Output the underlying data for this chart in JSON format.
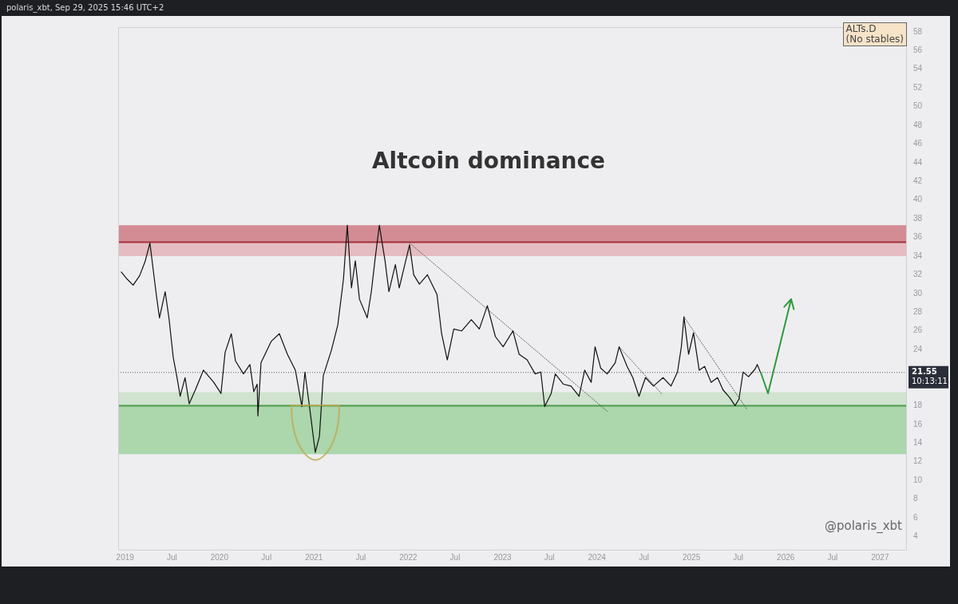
{
  "chart_data": {
    "type": "line",
    "title": "Altcoin dominance",
    "annotations": [
      "polaris_xbt, Sep 29, 2025 15:46 UTC+2",
      "ALTs.D\n(No stables)",
      "@polaris_xbt",
      "10:13:11"
    ],
    "xlim": [
      "2018-12-05",
      "2027-04-15"
    ],
    "xticks": [
      "2019",
      {
        "value": "2019-07",
        "label": "Jul"
      },
      "2020",
      {
        "value": "2020-07",
        "label": "Jul"
      },
      "2021",
      {
        "value": "2021-07",
        "label": "Jul"
      },
      "2022",
      {
        "value": "2022-07",
        "label": "Jul"
      },
      "2023",
      {
        "value": "2023-07",
        "label": "Jul"
      },
      "2024",
      {
        "value": "2024-07",
        "label": "Jul"
      },
      "2025",
      {
        "value": "2025-07",
        "label": "Jul"
      },
      "2026",
      {
        "value": "2026-07",
        "label": "Jul"
      },
      "2027"
    ],
    "ylim": [
      2.5,
      58.5
    ],
    "yticks": [
      4,
      6,
      8,
      10,
      12,
      14,
      16,
      18,
      24,
      26,
      28,
      30,
      32,
      34,
      36,
      38,
      40,
      42,
      44,
      46,
      48,
      50,
      52,
      54,
      56,
      58
    ],
    "grid": false,
    "legend": false,
    "marker": "none",
    "ref_lines": [
      {
        "axis": "y",
        "value": 21.55,
        "label": "21.55",
        "color": "#555555",
        "line_style": "dotted"
      },
      {
        "axis": "y",
        "value": 35.5,
        "color": "#a0303a",
        "line_style": "solid"
      },
      {
        "axis": "y",
        "value": 18,
        "color": "#4a9a4a",
        "line_style": "solid"
      }
    ],
    "bands": [
      {
        "axis": "y",
        "from": 35.5,
        "to": 37.3,
        "color": "#d48c94"
      },
      {
        "axis": "y",
        "from": 34,
        "to": 35.5,
        "color": "#e4bcc1"
      },
      {
        "axis": "y",
        "from": 18,
        "to": 19.45,
        "color": "#cfe3cf"
      },
      {
        "axis": "y",
        "from": 12.8,
        "to": 18,
        "color": "#acd6ac"
      }
    ],
    "series": [
      {
        "color": "#111111",
        "line_style": "solid",
        "x": [
          "2018-12-17",
          "2019-01-10",
          "2019-02-01",
          "2019-02-26",
          "2019-03-19",
          "2019-04-07",
          "2019-04-19",
          "2019-05-02",
          "2019-05-14",
          "2019-06-05",
          "2019-06-20",
          "2019-07-06",
          "2019-07-21",
          "2019-08-02",
          "2019-08-21",
          "2019-09-06",
          "2019-09-30",
          "2019-10-31",
          "2019-12-10",
          "2020-01-07",
          "2020-01-23",
          "2020-02-16",
          "2020-03-03",
          "2020-04-03",
          "2020-04-28",
          "2020-05-13",
          "2020-05-26",
          "2020-05-29",
          "2020-06-10",
          "2020-07-20",
          "2020-08-20",
          "2020-09-20",
          "2020-10-21",
          "2020-11-15",
          "2020-11-27",
          "2020-12-16",
          "2021-01-06",
          "2021-01-22",
          "2021-02-06",
          "2021-03-09",
          "2021-04-03",
          "2021-04-25",
          "2021-05-10",
          "2021-05-26",
          "2021-06-10",
          "2021-06-26",
          "2021-07-26",
          "2021-08-11",
          "2021-08-26",
          "2021-09-11",
          "2021-10-03",
          "2021-10-18",
          "2021-11-12",
          "2021-11-27",
          "2021-12-22",
          "2022-01-06",
          "2022-01-22",
          "2022-02-13",
          "2022-03-16",
          "2022-04-22",
          "2022-05-10",
          "2022-06-01",
          "2022-06-26",
          "2022-07-27",
          "2022-09-02",
          "2022-10-03",
          "2022-11-03",
          "2022-12-04",
          "2023-01-03",
          "2023-02-10",
          "2023-03-06",
          "2023-04-06",
          "2023-05-07",
          "2023-05-29",
          "2023-06-13",
          "2023-07-08",
          "2023-07-24",
          "2023-08-24",
          "2023-09-23",
          "2023-10-24",
          "2023-11-15",
          "2023-12-10",
          "2023-12-25",
          "2024-01-16",
          "2024-02-10",
          "2024-03-12",
          "2024-03-27",
          "2024-04-27",
          "2024-05-19",
          "2024-06-12",
          "2024-07-07",
          "2024-08-07",
          "2024-09-13",
          "2024-10-14",
          "2024-11-08",
          "2024-11-23",
          "2024-12-03",
          "2024-12-21",
          "2025-01-09",
          "2025-01-31",
          "2025-02-21",
          "2025-03-18",
          "2025-04-12",
          "2025-05-03",
          "2025-05-28",
          "2025-06-19",
          "2025-07-04",
          "2025-07-20",
          "2025-08-10",
          "2025-09-04",
          "2025-09-13",
          "2025-09-26"
        ],
        "values": [
          32.3,
          31.5,
          30.9,
          31.9,
          33.4,
          35.4,
          32.7,
          29.8,
          27.4,
          30.2,
          27.3,
          23.2,
          21.0,
          19.0,
          21.0,
          18.2,
          19.7,
          21.8,
          20.5,
          19.3,
          23.7,
          25.7,
          22.8,
          21.4,
          22.4,
          19.5,
          20.3,
          16.9,
          22.6,
          24.9,
          25.7,
          23.5,
          21.8,
          17.9,
          21.6,
          17.6,
          13.0,
          14.7,
          21.2,
          23.9,
          26.6,
          31.5,
          37.3,
          30.6,
          33.5,
          29.4,
          27.4,
          30.2,
          33.8,
          37.3,
          33.5,
          30.2,
          33.1,
          30.6,
          33.5,
          35.2,
          32.0,
          31.0,
          32.0,
          29.9,
          25.7,
          22.9,
          26.2,
          26.0,
          27.2,
          26.2,
          28.7,
          25.4,
          24.3,
          26.0,
          23.5,
          22.9,
          21.4,
          21.6,
          17.9,
          19.3,
          21.4,
          20.3,
          20.1,
          19.0,
          21.8,
          20.5,
          24.3,
          22.0,
          21.4,
          22.6,
          24.3,
          22.2,
          21.0,
          19.0,
          21.0,
          20.1,
          21.0,
          20.1,
          21.6,
          24.3,
          27.5,
          23.5,
          25.8,
          21.8,
          22.2,
          20.5,
          21.0,
          19.7,
          18.9,
          18.0,
          18.7,
          21.6,
          21.1,
          21.9,
          22.4,
          21.5
        ]
      },
      {
        "color": "#555555",
        "line_style": "dotted",
        "x": [
          "2022-01-06",
          "2024-02-10"
        ],
        "values": [
          35.4,
          17.4
        ]
      },
      {
        "color": "#555555",
        "line_style": "dotted",
        "x": [
          "2024-03-27",
          "2024-09-07"
        ],
        "values": [
          24.3,
          19.3
        ]
      },
      {
        "color": "#555555",
        "line_style": "dotted",
        "x": [
          "2024-12-03",
          "2025-08-04"
        ],
        "values": [
          27.5,
          17.6
        ]
      }
    ]
  }
}
